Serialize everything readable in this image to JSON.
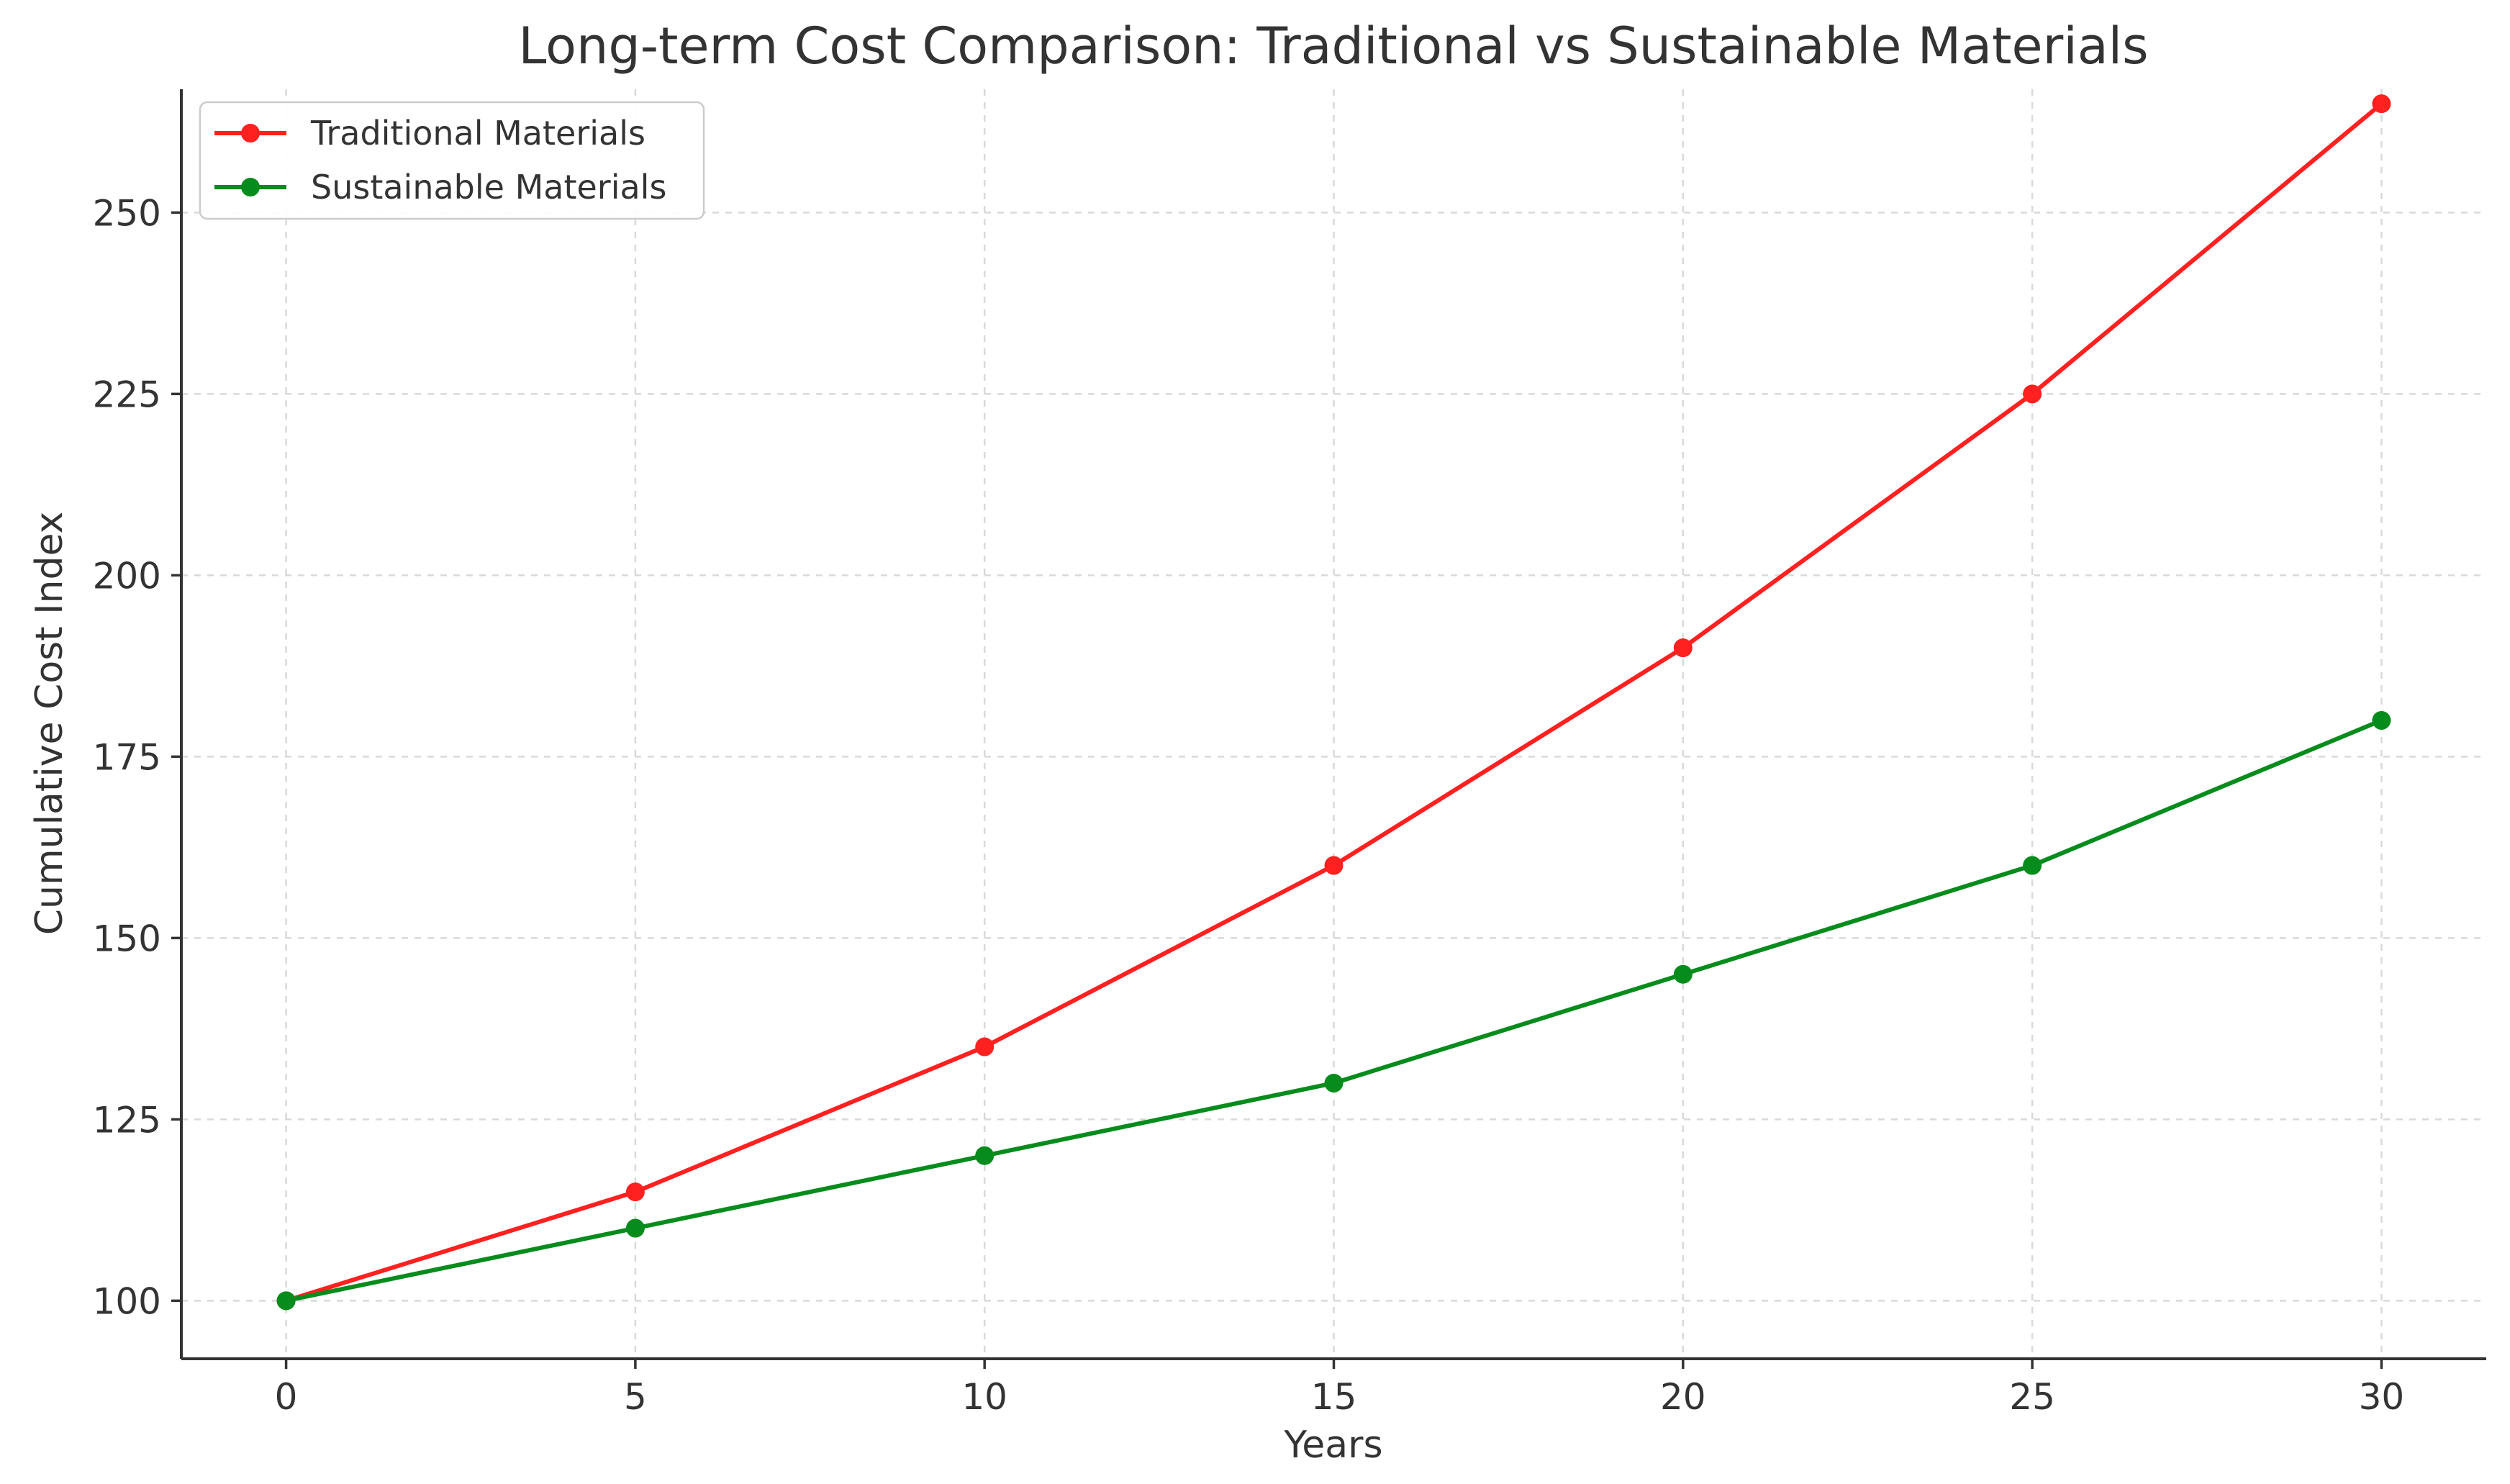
{
  "chart_data": {
    "type": "line",
    "title": "Long-term Cost Comparison: Traditional vs Sustainable Materials",
    "xlabel": "Years",
    "ylabel": "Cumulative Cost Index",
    "x": [
      0,
      5,
      10,
      15,
      20,
      25,
      30
    ],
    "xlim": [
      -1.5,
      31.5
    ],
    "ylim": [
      92,
      267
    ],
    "x_ticks": [
      0,
      5,
      10,
      15,
      20,
      25,
      30
    ],
    "y_ticks": [
      100,
      125,
      150,
      175,
      200,
      225,
      250
    ],
    "grid": true,
    "legend_position": "top-left",
    "series": [
      {
        "name": "Traditional Materials",
        "color": "#ff2020",
        "values": [
          100,
          115,
          135,
          160,
          190,
          225,
          265
        ]
      },
      {
        "name": "Sustainable Materials",
        "color": "#068c1c",
        "values": [
          100,
          110,
          120,
          130,
          145,
          160,
          180
        ]
      }
    ]
  }
}
